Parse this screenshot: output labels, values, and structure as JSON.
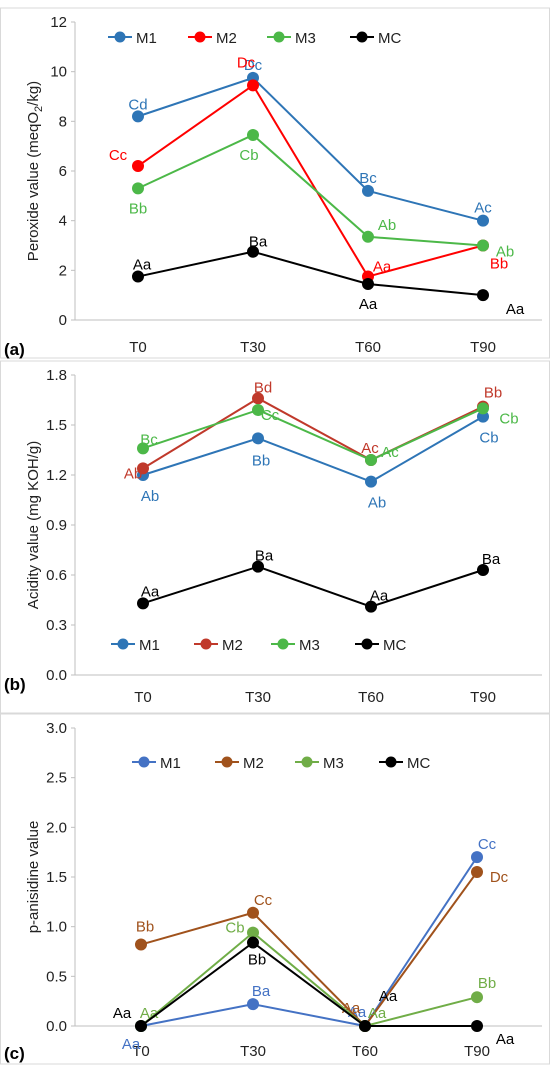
{
  "colors": {
    "M1": "#2e75b6",
    "M2": "#ff0000",
    "M2c": "#c0392b",
    "M2b": "#a0521c",
    "M3": "#4cb848",
    "M3c": "#70ad47",
    "M1c": "#4472c4",
    "MC": "#000000"
  },
  "chart_data": [
    {
      "panel_label": "(a)",
      "type": "line",
      "categories": [
        "T0",
        "T30",
        "T60",
        "T90"
      ],
      "ylabel_pre": "Peroxide value (meqO",
      "ylabel_sub": "2",
      "ylabel_post": "/kg)",
      "ylim": [
        0,
        12
      ],
      "yticks": [
        "0",
        "2",
        "4",
        "6",
        "8",
        "10",
        "12"
      ],
      "legend": [
        "M1",
        "M2",
        "M3",
        "MC"
      ],
      "series": [
        {
          "name": "M1",
          "values": [
            8.2,
            9.75,
            5.2,
            4.0
          ],
          "labels": [
            "Cd",
            "Dc",
            "Bc",
            "Ac"
          ],
          "color_key": "M1"
        },
        {
          "name": "M2",
          "values": [
            6.2,
            9.45,
            1.75,
            3.0
          ],
          "labels": [
            "Cc",
            "Dc",
            "Aa",
            "Bb"
          ],
          "color_key": "M2"
        },
        {
          "name": "M3",
          "values": [
            5.3,
            7.45,
            3.35,
            3.0
          ],
          "labels": [
            "Bb",
            "Cb",
            "Ab",
            "Ab"
          ],
          "color_key": "M3"
        },
        {
          "name": "MC",
          "values": [
            1.75,
            2.75,
            1.45,
            1.0
          ],
          "labels": [
            "Aa",
            "Ba",
            "Aa",
            "Aa"
          ],
          "color_key": "MC"
        }
      ]
    },
    {
      "panel_label": "(b)",
      "type": "line",
      "categories": [
        "T0",
        "T30",
        "T60",
        "T90"
      ],
      "ylabel_pre": "Acidity value (mg KOH/g)",
      "ylabel_sub": "",
      "ylabel_post": "",
      "ylim": [
        0,
        1.8
      ],
      "yticks": [
        "0.0",
        "0.3",
        "0.6",
        "0.9",
        "1.2",
        "1.5",
        "1.8"
      ],
      "legend": [
        "M1",
        "M2",
        "M3",
        "MC"
      ],
      "series": [
        {
          "name": "M1",
          "values": [
            1.2,
            1.42,
            1.16,
            1.55
          ],
          "labels": [
            "Ab",
            "Bb",
            "Ab",
            "Cb"
          ],
          "color_key": "M1"
        },
        {
          "name": "M2",
          "values": [
            1.24,
            1.66,
            1.29,
            1.61
          ],
          "labels": [
            "Ab",
            "Bd",
            "Ac",
            "Bb"
          ],
          "color_key": "M2c"
        },
        {
          "name": "M3",
          "values": [
            1.36,
            1.59,
            1.29,
            1.6
          ],
          "labels": [
            "Bc",
            "Cc",
            "Ac",
            "Cb"
          ],
          "color_key": "M3"
        },
        {
          "name": "MC",
          "values": [
            0.43,
            0.65,
            0.41,
            0.63
          ],
          "labels": [
            "Aa",
            "Ba",
            "Aa",
            "Ba"
          ],
          "color_key": "MC"
        }
      ]
    },
    {
      "panel_label": "(c)",
      "type": "line",
      "categories": [
        "T0",
        "T30",
        "T60",
        "T90"
      ],
      "ylabel_pre": "p-anisidine value",
      "ylabel_sub": "",
      "ylabel_post": "",
      "ylim": [
        0,
        3.0
      ],
      "yticks": [
        "0.0",
        "0.5",
        "1.0",
        "1.5",
        "2.0",
        "2.5",
        "3.0"
      ],
      "legend": [
        "M1",
        "M2",
        "M3",
        "MC"
      ],
      "series": [
        {
          "name": "M1",
          "values": [
            0.0,
            0.22,
            0.0,
            1.7
          ],
          "labels": [
            "Aa",
            "Ba",
            "Aa",
            "Cc"
          ],
          "color_key": "M1c"
        },
        {
          "name": "M2",
          "values": [
            0.82,
            1.14,
            0.0,
            1.55
          ],
          "labels": [
            "Bb",
            "Cc",
            "Aa",
            "Dc"
          ],
          "color_key": "M2b"
        },
        {
          "name": "M3",
          "values": [
            0.0,
            0.94,
            0.0,
            0.29
          ],
          "labels": [
            "Aa",
            "Cb",
            "Aa",
            "Bb"
          ],
          "color_key": "M3c"
        },
        {
          "name": "MC",
          "values": [
            0.0,
            0.84,
            0.0,
            0.0
          ],
          "labels": [
            "Aa",
            "Bb",
            "Aa",
            "Aa"
          ],
          "color_key": "MC"
        }
      ]
    }
  ]
}
